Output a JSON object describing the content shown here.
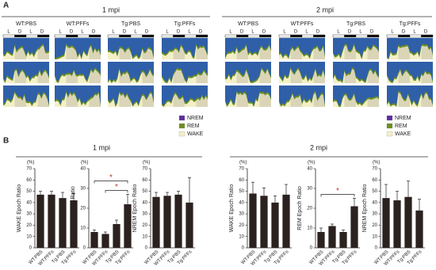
{
  "panel_a": {
    "label": "A",
    "titles": [
      "1 mpi",
      "2 mpi"
    ],
    "groups": [
      "WT:PBS",
      "WT:PFFs",
      "Tg:PBS",
      "Tg:PFFs"
    ],
    "light_dark": [
      "L",
      "D"
    ],
    "legend": [
      {
        "name": "NREM",
        "color": "#5b2ca0"
      },
      {
        "name": "REM",
        "color": "#6a8f1e"
      },
      {
        "name": "WAKE",
        "color": "#f3efc6"
      }
    ]
  },
  "panel_b": {
    "label": "B",
    "titles": [
      "1 mpi",
      "2 mpi"
    ]
  },
  "chart_data": [
    {
      "type": "bar",
      "ylabel": "WAKE Epoch Ratio",
      "unit": "(%)",
      "categories": [
        "WT:PBS",
        "WT:PFFs",
        "Tg:PBS",
        "Tg:PFFs"
      ],
      "values": [
        47,
        47,
        44,
        42
      ],
      "errors": [
        3,
        3,
        5,
        6
      ],
      "color": "#2b2220",
      "ylim": [
        0,
        70
      ],
      "yticks": [
        0,
        10,
        20,
        30,
        40,
        50,
        60,
        70
      ],
      "significance": []
    },
    {
      "type": "bar",
      "ylabel": "REM Epoch Ratio",
      "unit": "(%)",
      "categories": [
        "WT:PBS",
        "WT:PFFs",
        "Tg:PBS",
        "Tg:PFFs"
      ],
      "values": [
        8,
        7,
        12,
        22
      ],
      "errors": [
        1,
        1,
        2,
        5
      ],
      "color": "#2b2220",
      "ylim": [
        0,
        40
      ],
      "yticks": [
        0,
        10,
        20,
        30,
        40
      ],
      "significance": [
        {
          "label": "*",
          "from": "WT:PFFs",
          "to": "Tg:PFFs"
        },
        {
          "label": "*",
          "from": "WT:PBS",
          "to": "Tg:PFFs"
        }
      ]
    },
    {
      "type": "bar",
      "ylabel": "NREM Epoch Ratio",
      "unit": "(%)",
      "categories": [
        "WT:PBS",
        "WT:PFFs",
        "Tg:PBS",
        "Tg:PFFs"
      ],
      "values": [
        45,
        46,
        47,
        40
      ],
      "errors": [
        4,
        3,
        3,
        22
      ],
      "color": "#2b2220",
      "ylim": [
        0,
        70
      ],
      "yticks": [
        0,
        10,
        20,
        30,
        40,
        50,
        60,
        70
      ],
      "significance": []
    },
    {
      "type": "bar",
      "ylabel": "WAKE Epoch Ratio",
      "unit": "(%)",
      "categories": [
        "WT:PBS",
        "WT:PFFs",
        "Tg:PBS",
        "Tg:PFFs"
      ],
      "values": [
        48,
        46,
        40,
        47
      ],
      "errors": [
        10,
        7,
        6,
        9
      ],
      "color": "#2b2220",
      "ylim": [
        0,
        70
      ],
      "yticks": [
        0,
        10,
        20,
        30,
        40,
        50,
        60,
        70
      ],
      "significance": []
    },
    {
      "type": "bar",
      "ylabel": "REM Epoch Ratio",
      "unit": "(%)",
      "categories": [
        "WT:PBS",
        "WT:PFFs",
        "Tg:PBS",
        "Tg:PFFs"
      ],
      "values": [
        8,
        11,
        8,
        21
      ],
      "errors": [
        2,
        1,
        1,
        4
      ],
      "color": "#2b2220",
      "ylim": [
        0,
        40
      ],
      "yticks": [
        0,
        10,
        20,
        30,
        40
      ],
      "significance": [
        {
          "label": "*",
          "from": "WT:PBS",
          "to": "Tg:PFFs"
        }
      ]
    },
    {
      "type": "bar",
      "ylabel": "NREM Epoch Ratio",
      "unit": "(%)",
      "categories": [
        "WT:PBS",
        "WT:PFFs",
        "Tg:PBS",
        "Tg:PFFs"
      ],
      "values": [
        44,
        42,
        45,
        33
      ],
      "errors": [
        12,
        8,
        14,
        10
      ],
      "color": "#2b2220",
      "ylim": [
        0,
        70
      ],
      "yticks": [
        0,
        10,
        20,
        30,
        40,
        50,
        60,
        70
      ],
      "significance": []
    }
  ]
}
